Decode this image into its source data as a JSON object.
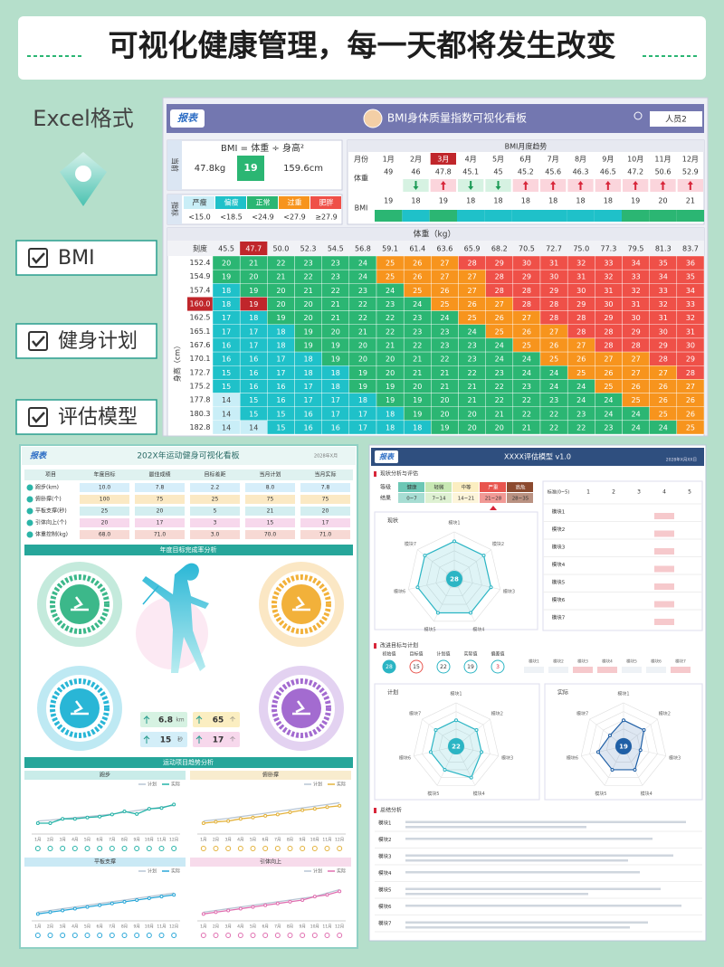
{
  "header": {
    "title": "可视化健康管理，每一天都将发生改变"
  },
  "sidebar": {
    "format": "Excel格式",
    "items": [
      "BMI",
      "健身计划",
      "评估模型"
    ]
  },
  "bmi": {
    "brand": "报表",
    "title": "BMI身体质量指数可视化看板",
    "user": "人员2",
    "current_label": "当前",
    "formula": "BMI = 体重 ÷ 身高²",
    "weight": "47.8kg",
    "value": 19,
    "height": "159.6cm",
    "index_label": "指标",
    "categories": [
      "严瘦",
      "偏瘦",
      "正常",
      "过重",
      "肥胖"
    ],
    "colors": [
      "#c9eef7",
      "#1fc1c9",
      "#2bb673",
      "#f7941d",
      "#ef5048"
    ],
    "thresholds": [
      {
        "value": 15,
        "label": "<15.0"
      },
      {
        "value": 18.5,
        "label": "<18.5"
      },
      {
        "value": 24.9,
        "label": "<24.9"
      },
      {
        "value": 27.9,
        "label": "<27.9"
      },
      {
        "value": 27.9,
        "label": "≥27.9"
      }
    ],
    "trend": {
      "title": "BMI月度趋势",
      "month_label": "月份",
      "weight_label": "体重",
      "bmi_label": "BMI",
      "months": [
        "1月",
        "2月",
        "3月",
        "4月",
        "5月",
        "6月",
        "7月",
        "8月",
        "9月",
        "10月",
        "11月",
        "12月"
      ],
      "weights": [
        49,
        46,
        47.8,
        45.1,
        45,
        45.2,
        45.6,
        46.3,
        46.5,
        47.2,
        50.6,
        52.9
      ],
      "bmi": [
        19,
        18,
        19,
        18,
        18,
        18,
        18,
        18,
        18,
        19,
        20,
        21
      ]
    },
    "grid": {
      "title": "体重（kg）",
      "corner": "刻度",
      "y_label": "身高（cm）",
      "weights": [
        "45.5",
        "47.7",
        "50.0",
        "52.3",
        "54.5",
        "56.8",
        "59.1",
        "61.4",
        "63.6",
        "65.9",
        "68.2",
        "70.5",
        "72.7",
        "75.0",
        "77.3",
        "79.5",
        "81.3",
        "83.7"
      ],
      "heights": [
        "152.4",
        "154.9",
        "157.4",
        "160.0",
        "162.5",
        "165.1",
        "167.6",
        "170.1",
        "172.7",
        "175.2",
        "177.8",
        "180.3",
        "182.8"
      ],
      "rows": [
        [
          20,
          21,
          22,
          23,
          23,
          24,
          25,
          26,
          27,
          28,
          29,
          30,
          31,
          32,
          33,
          34,
          35,
          36
        ],
        [
          19,
          20,
          21,
          22,
          23,
          24,
          25,
          26,
          27,
          27,
          28,
          29,
          30,
          31,
          32,
          33,
          34,
          35
        ],
        [
          18,
          19,
          20,
          21,
          22,
          23,
          24,
          25,
          26,
          27,
          28,
          28,
          29,
          30,
          31,
          32,
          33,
          34
        ],
        [
          18,
          19,
          20,
          20,
          21,
          22,
          23,
          24,
          25,
          26,
          27,
          28,
          28,
          29,
          30,
          31,
          32,
          33
        ],
        [
          17,
          18,
          19,
          20,
          21,
          22,
          22,
          23,
          24,
          25,
          26,
          27,
          28,
          28,
          29,
          30,
          31,
          32
        ],
        [
          17,
          17,
          18,
          19,
          20,
          21,
          22,
          23,
          23,
          24,
          25,
          26,
          27,
          28,
          28,
          29,
          30,
          31
        ],
        [
          16,
          17,
          18,
          19,
          19,
          20,
          21,
          22,
          23,
          23,
          24,
          25,
          26,
          27,
          28,
          28,
          29,
          30
        ],
        [
          16,
          16,
          17,
          18,
          19,
          20,
          20,
          21,
          22,
          23,
          24,
          24,
          25,
          26,
          27,
          27,
          28,
          29
        ],
        [
          15,
          16,
          17,
          18,
          18,
          19,
          20,
          21,
          21,
          22,
          23,
          24,
          24,
          25,
          26,
          27,
          27,
          28
        ],
        [
          15,
          16,
          16,
          17,
          18,
          19,
          19,
          20,
          21,
          21,
          22,
          23,
          24,
          24,
          25,
          26,
          26,
          27
        ],
        [
          14,
          15,
          16,
          17,
          17,
          18,
          19,
          19,
          20,
          21,
          22,
          22,
          23,
          24,
          24,
          25,
          26,
          26
        ],
        [
          14,
          15,
          15,
          16,
          17,
          17,
          18,
          19,
          20,
          20,
          21,
          22,
          22,
          23,
          24,
          24,
          25,
          26
        ],
        [
          14,
          14,
          15,
          16,
          16,
          17,
          18,
          18,
          19,
          20,
          20,
          21,
          22,
          22,
          23,
          24,
          24,
          25
        ]
      ]
    }
  },
  "fitness": {
    "brand": "报表",
    "title": "202X年运动健身可视化看板",
    "date": "2028年X月",
    "headers": [
      "项目",
      "年度目标",
      "最佳成绩",
      "目标差距",
      "当月计划",
      "当月实际"
    ],
    "rows": [
      [
        "跑步(km)",
        "10.0",
        "7.8",
        "2.2",
        "8.0",
        "7.8"
      ],
      [
        "俯卧撑(个)",
        "100",
        "75",
        "25",
        "75",
        "75"
      ],
      [
        "平板支撑(秒)",
        "25",
        "20",
        "5",
        "21",
        "20"
      ],
      [
        "引体向上(个)",
        "20",
        "17",
        "3",
        "15",
        "17"
      ],
      [
        "体重控制(kg)",
        "68.0",
        "71.0",
        "3.0",
        "70.0",
        "71.0"
      ]
    ],
    "section1": "年度目标完成率分析",
    "stats": [
      {
        "value": "6.8",
        "unit": "km"
      },
      {
        "value": "65",
        "unit": "个"
      },
      {
        "value": "15",
        "unit": "秒"
      },
      {
        "value": "17",
        "unit": "个"
      }
    ],
    "section2": "运动项目趋势分析",
    "months": [
      "1月",
      "2月",
      "3月",
      "4月",
      "5月",
      "6月",
      "7月",
      "8月",
      "9月",
      "10月",
      "11月",
      "12月"
    ],
    "legend": [
      {
        "name": "计划",
        "color": "#b8c6d4"
      },
      {
        "name": "实际"
      }
    ],
    "trends": [
      {
        "name": "跑步",
        "color": "#26b3a8",
        "ylim": [
          0,
          10
        ],
        "plan": [
          3.0,
          3.2,
          3.5,
          3.8,
          4.0,
          4.3,
          4.6,
          5.0,
          5.4,
          5.8,
          6.2,
          6.6
        ],
        "actual": [
          2.5,
          2.5,
          3.5,
          3.5,
          3.8,
          4.0,
          4.5,
          5.2,
          4.6,
          5.8,
          6.0,
          6.8
        ]
      },
      {
        "name": "俯卧撑",
        "color": "#e3b23c",
        "ylim": [
          0,
          100
        ],
        "plan": [
          30,
          33,
          36,
          40,
          44,
          48,
          52,
          56,
          60,
          64,
          68,
          72
        ],
        "actual": [
          25,
          28,
          30,
          35,
          38,
          42,
          45,
          50,
          55,
          58,
          62,
          65
        ]
      },
      {
        "name": "平板支撑",
        "color": "#2aa7d8",
        "ylim": [
          0,
          25
        ],
        "plan": [
          5,
          6,
          7,
          8,
          9,
          10,
          11,
          12,
          13,
          14,
          15,
          16
        ],
        "actual": [
          4,
          5,
          6,
          7,
          8,
          9,
          10,
          11,
          12,
          13,
          14,
          15
        ]
      },
      {
        "name": "引体向上",
        "color": "#e06fb0",
        "ylim": [
          0,
          25
        ],
        "plan": [
          5,
          6,
          7,
          8,
          9,
          10,
          11,
          12,
          13,
          14,
          16,
          18
        ],
        "actual": [
          4,
          5,
          6,
          7,
          8,
          9,
          10,
          11,
          12,
          14,
          15,
          17
        ]
      }
    ]
  },
  "assessment": {
    "brand": "报表",
    "title": "XXXX评估模型 v1.0",
    "date": "2028年X月XX日",
    "section1": "现状分析与评估",
    "level_label": "等级",
    "result_label": "结果",
    "levels": [
      "健康",
      "轻微",
      "中等",
      "严重",
      "高危"
    ],
    "level_colors": [
      "#6cc7b5",
      "#c8e8b4",
      "#fbeec1",
      "#e8554e",
      "#8c4a2f"
    ],
    "ranges": [
      "0~7",
      "7~14",
      "14~21",
      "21~28",
      "28~35"
    ],
    "score_header": "标准(0~5)",
    "score_columns": [
      1,
      2,
      3,
      4,
      5
    ],
    "modules": [
      "模块1",
      "模块2",
      "模块3",
      "模块4",
      "模块5",
      "模块6",
      "模块7"
    ],
    "now_label": "现状",
    "rlim": [
      0,
      5
    ],
    "rticks": [
      1,
      2,
      3,
      4,
      5
    ],
    "now": [
      4,
      4,
      4,
      4,
      4,
      4,
      4
    ],
    "section2": "改进目标与计划",
    "plan_headers": [
      "初始值",
      "目标值",
      "计划值",
      "实际值",
      "偏差值"
    ],
    "plan_values": [
      28,
      15,
      22,
      19,
      3
    ],
    "plan_label": "计划",
    "plan": [
      3,
      3,
      3,
      4,
      3,
      3,
      3
    ],
    "actual_label": "实际",
    "actual": [
      3,
      3,
      2,
      3,
      3,
      3,
      2
    ],
    "section3": "总结分析"
  }
}
